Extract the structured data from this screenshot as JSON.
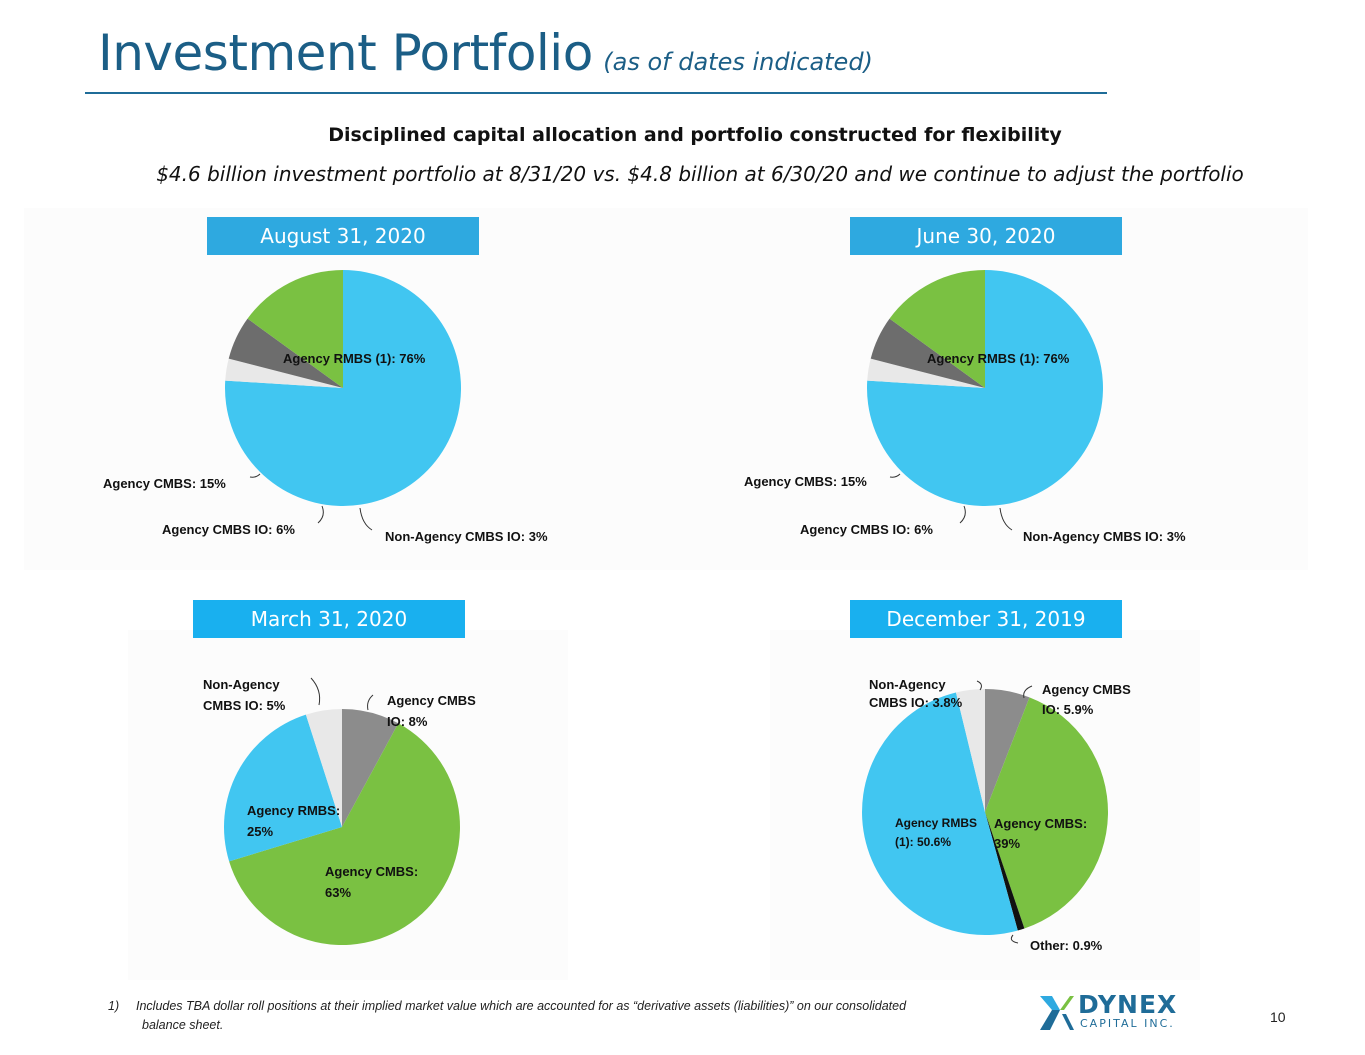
{
  "header": {
    "title": "Investment Portfolio",
    "title_suffix": "(as of dates indicated)",
    "subhead": "Disciplined capital allocation and portfolio constructed for flexibility",
    "subline": "$4.6 billion investment portfolio at 8/31/20 vs. $4.8 billion at 6/30/20 and we continue to adjust the portfolio"
  },
  "colors": {
    "agency_rmbs": "#41c6f1",
    "agency_cmbs": "#7ac142",
    "agency_cmbs_io": "#6d6d6d",
    "agency_cmbs_io_light": "#8c8c8c",
    "non_agency_cmbs_io": "#e8e8e8",
    "other": "#111111",
    "title_blue": "#1b5e86"
  },
  "chart_data": [
    {
      "type": "pie",
      "title": "August 31, 2020",
      "slices": [
        {
          "label": "Agency RMBS (1): 76%",
          "value": 76
        },
        {
          "label": "Non-Agency CMBS IO: 3%",
          "value": 3
        },
        {
          "label": "Agency CMBS IO: 6%",
          "value": 6
        },
        {
          "label": "Agency CMBS: 15%",
          "value": 15
        }
      ]
    },
    {
      "type": "pie",
      "title": "June 30, 2020",
      "slices": [
        {
          "label": "Agency RMBS (1): 76%",
          "value": 76
        },
        {
          "label": "Non-Agency CMBS IO: 3%",
          "value": 3
        },
        {
          "label": "Agency CMBS IO: 6%",
          "value": 6
        },
        {
          "label": "Agency CMBS: 15%",
          "value": 15
        }
      ]
    },
    {
      "type": "pie",
      "title": "March 31, 2020",
      "slices": [
        {
          "label": "Agency CMBS IO: 8%",
          "value": 8
        },
        {
          "label": "Agency CMBS: 63%",
          "value": 63
        },
        {
          "label": "Agency RMBS: 25%",
          "value": 25
        },
        {
          "label": "Non-Agency CMBS IO: 5%",
          "value": 5
        }
      ]
    },
    {
      "type": "pie",
      "title": "December 31, 2019",
      "slices": [
        {
          "label": "Agency CMBS IO: 5.9%",
          "value": 5.9
        },
        {
          "label": "Agency CMBS: 39%",
          "value": 39
        },
        {
          "label": "Other: 0.9%",
          "value": 0.9
        },
        {
          "label": "Agency RMBS (1): 50.6%",
          "value": 50.6
        },
        {
          "label": "Non-Agency CMBS IO: 3.8%",
          "value": 3.8
        }
      ]
    }
  ],
  "labels": {
    "aug": {
      "rmbs": "Agency RMBS (1): 76%",
      "cmbs": "Agency CMBS: 15%",
      "cmbs_io": "Agency CMBS IO: 6%",
      "nacmbs_io": "Non-Agency CMBS IO: 3%"
    },
    "jun": {
      "rmbs": "Agency RMBS (1): 76%",
      "cmbs": "Agency CMBS: 15%",
      "cmbs_io": "Agency CMBS IO: 6%",
      "nacmbs_io": "Non-Agency CMBS IO: 3%"
    },
    "mar": {
      "nacmbs_io_1": "Non-Agency",
      "nacmbs_io_2": "CMBS IO: 5%",
      "cmbs_io_1": "Agency CMBS",
      "cmbs_io_2": "IO: 8%",
      "rmbs_1": "Agency RMBS:",
      "rmbs_2": "25%",
      "cmbs_1": "Agency CMBS:",
      "cmbs_2": "63%"
    },
    "dec": {
      "nacmbs_io_1": "Non-Agency",
      "nacmbs_io_2": "CMBS IO: 3.8%",
      "cmbs_io_1": "Agency CMBS",
      "cmbs_io_2": "IO: 5.9%",
      "rmbs_1": "Agency RMBS",
      "rmbs_2": "(1): 50.6%",
      "cmbs_1": "Agency CMBS:",
      "cmbs_2": "39%",
      "other": "Other: 0.9%"
    }
  },
  "footnote": {
    "number": "1)",
    "line1": "Includes TBA dollar roll positions at their implied market value which are accounted for as “derivative assets (liabilities)” on our consolidated",
    "line2": "balance sheet."
  },
  "logo": {
    "name": "DYNEX",
    "subtitle": "CAPITAL INC."
  },
  "page_number": "10"
}
